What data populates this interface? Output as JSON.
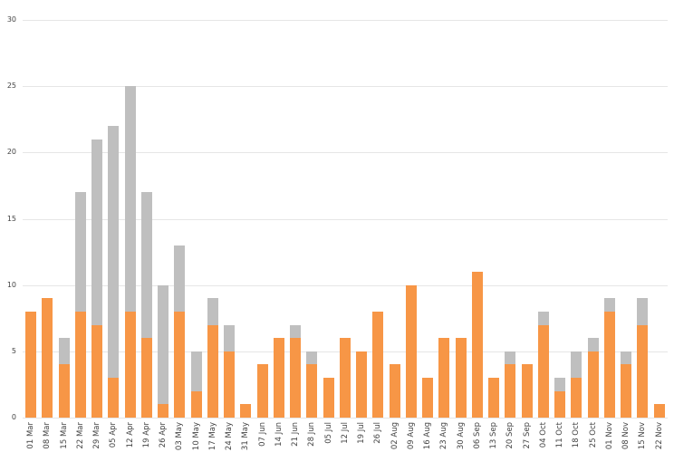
{
  "chart_data": {
    "type": "bar",
    "stacked": true,
    "title": "",
    "xlabel": "",
    "ylabel": "",
    "ylim": [
      0,
      30
    ],
    "yticks": [
      0,
      5,
      10,
      15,
      20,
      25,
      30
    ],
    "grid": true,
    "legend": null,
    "categories": [
      "01 Mar",
      "08 Mar",
      "15 Mar",
      "22 Mar",
      "29 Mar",
      "05 Apr",
      "12 Apr",
      "19 Apr",
      "26 Apr",
      "03 May",
      "10 May",
      "17 May",
      "24 May",
      "31 May",
      "07 Jun",
      "14 Jun",
      "21 Jun",
      "28 Jun",
      "05 Jul",
      "12 Jul",
      "19 Jul",
      "26 Jul",
      "02 Aug",
      "09 Aug",
      "16 Aug",
      "23 Aug",
      "30 Aug",
      "06 Sep",
      "13 Sep",
      "20 Sep",
      "27 Sep",
      "04 Oct",
      "11 Oct",
      "18 Oct",
      "25 Oct",
      "01 Nov",
      "08 Nov",
      "15 Nov",
      "22 Nov"
    ],
    "series": [
      {
        "name": "orange",
        "color": "#f79646",
        "values": [
          8,
          9,
          4,
          8,
          7,
          3,
          8,
          6,
          1,
          8,
          2,
          7,
          5,
          1,
          4,
          6,
          6,
          4,
          3,
          6,
          5,
          8,
          4,
          10,
          3,
          6,
          6,
          11,
          3,
          4,
          4,
          7,
          2,
          3,
          5,
          8,
          4,
          7,
          1
        ]
      },
      {
        "name": "grey",
        "color": "#bfbfbf",
        "values": [
          0,
          0,
          2,
          9,
          14,
          19,
          17,
          11,
          9,
          5,
          3,
          2,
          2,
          0,
          0,
          0,
          1,
          1,
          0,
          0,
          0,
          0,
          0,
          0,
          0,
          0,
          0,
          0,
          0,
          1,
          0,
          1,
          1,
          2,
          1,
          1,
          1,
          2,
          0
        ]
      }
    ]
  }
}
